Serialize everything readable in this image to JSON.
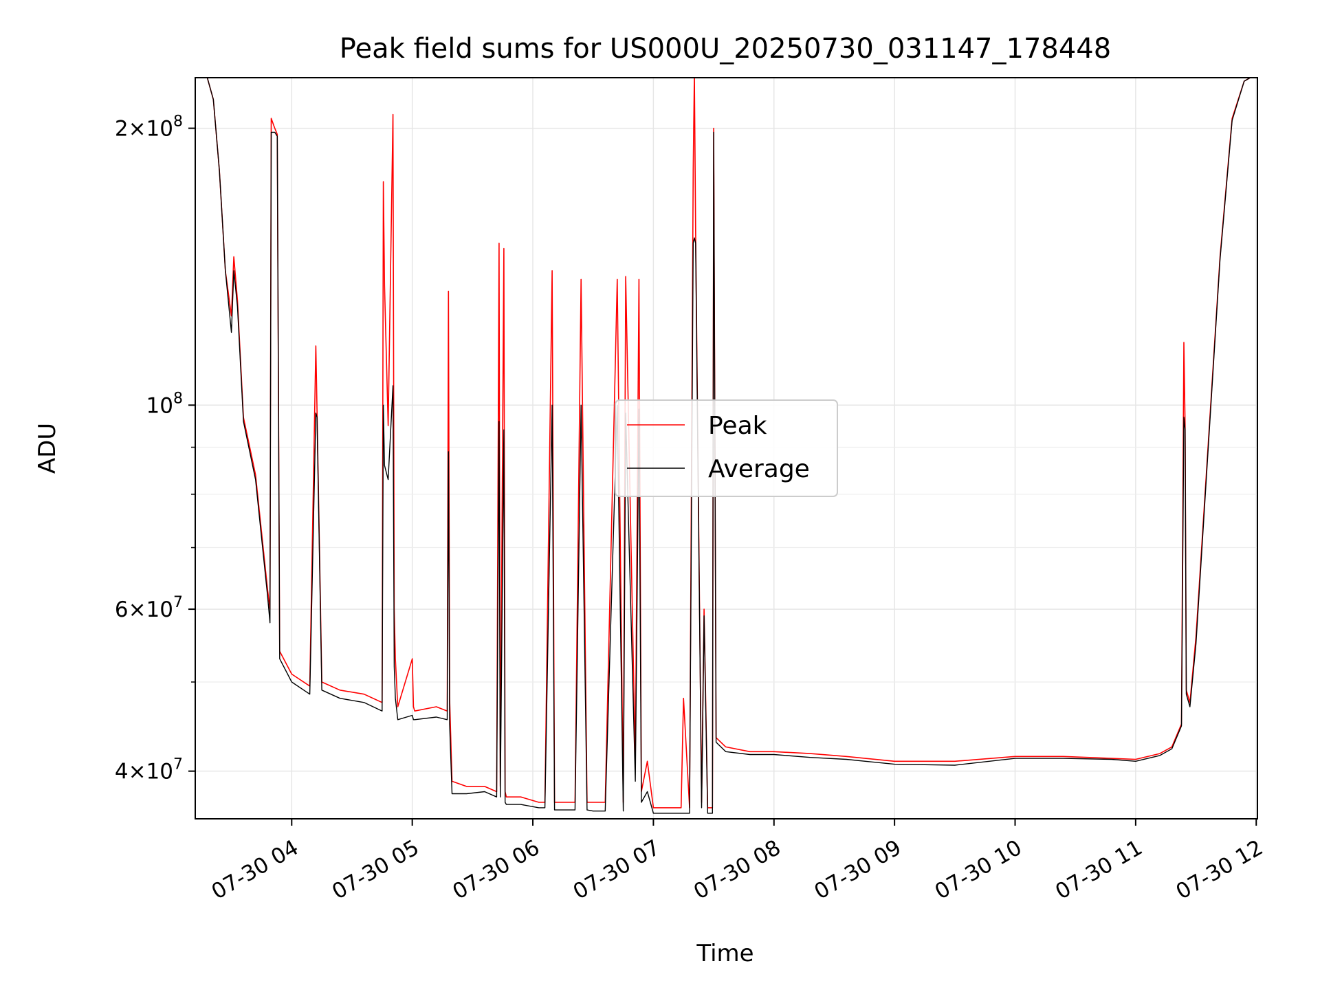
{
  "chart_data": {
    "type": "line",
    "title": "Peak field sums for US000U_20250730_031147_178448",
    "xlabel": "Time",
    "ylabel": "ADU",
    "yscale": "log",
    "grid": true,
    "legend_position": "center",
    "xlim": [
      3.2,
      12.01
    ],
    "ylim": [
      35500000,
      227000000
    ],
    "x_ticks": [
      {
        "value": 4,
        "label": "07-30 04"
      },
      {
        "value": 5,
        "label": "07-30 05"
      },
      {
        "value": 6,
        "label": "07-30 06"
      },
      {
        "value": 7,
        "label": "07-30 07"
      },
      {
        "value": 8,
        "label": "07-30 08"
      },
      {
        "value": 9,
        "label": "07-30 09"
      },
      {
        "value": 10,
        "label": "07-30 10"
      },
      {
        "value": 11,
        "label": "07-30 11"
      },
      {
        "value": 12,
        "label": "07-30 12"
      }
    ],
    "y_ticks": [
      {
        "value": 40000000,
        "base": "4",
        "exp": "7"
      },
      {
        "value": 60000000,
        "base": "6",
        "exp": "7"
      },
      {
        "value": 100000000,
        "base": "",
        "exp": "8"
      },
      {
        "value": 200000000,
        "base": "2",
        "exp": "8"
      }
    ],
    "y_minor_ticks": [
      50000000,
      70000000,
      80000000,
      90000000
    ],
    "series": [
      {
        "name": "Peak",
        "color": "#ff0000",
        "x": [
          3.2,
          3.3,
          3.35,
          3.4,
          3.45,
          3.5,
          3.52,
          3.55,
          3.6,
          3.7,
          3.8,
          3.82,
          3.83,
          3.86,
          3.88,
          3.9,
          4.0,
          4.15,
          4.2,
          4.21,
          4.25,
          4.4,
          4.6,
          4.75,
          4.76,
          4.77,
          4.8,
          4.84,
          4.85,
          4.86,
          4.88,
          5.0,
          5.01,
          5.02,
          5.2,
          5.29,
          5.3,
          5.31,
          5.33,
          5.45,
          5.6,
          5.7,
          5.72,
          5.73,
          5.76,
          5.77,
          5.78,
          5.9,
          6.05,
          6.1,
          6.16,
          6.18,
          6.25,
          6.35,
          6.4,
          6.45,
          6.5,
          6.6,
          6.7,
          6.75,
          6.77,
          6.85,
          6.88,
          6.9,
          6.95,
          7.0,
          7.1,
          7.23,
          7.25,
          7.3,
          7.33,
          7.34,
          7.35,
          7.4,
          7.42,
          7.45,
          7.49,
          7.5,
          7.52,
          7.6,
          7.8,
          8.0,
          8.3,
          8.6,
          9.0,
          9.5,
          10.0,
          10.4,
          10.8,
          11.0,
          11.2,
          11.3,
          11.38,
          11.4,
          11.41,
          11.42,
          11.45,
          11.5,
          11.6,
          11.7,
          11.8,
          11.9,
          11.95,
          12.0,
          12.01
        ],
        "values": [
          227000000,
          227000000,
          215000000,
          180000000,
          140000000,
          125000000,
          145000000,
          130000000,
          97000000,
          84000000,
          63000000,
          60000000,
          205000000,
          200000000,
          197000000,
          54000000,
          51000000,
          49500000,
          116000000,
          99000000,
          50000000,
          49000000,
          48500000,
          47500000,
          175000000,
          135000000,
          95000000,
          207000000,
          60000000,
          53000000,
          47000000,
          53000000,
          47000000,
          46500000,
          47000000,
          46500000,
          133000000,
          48000000,
          39000000,
          38500000,
          38500000,
          38000000,
          150000000,
          38500000,
          148000000,
          38000000,
          37500000,
          37500000,
          37000000,
          37000000,
          140000000,
          37000000,
          37000000,
          37000000,
          137000000,
          37000000,
          37000000,
          37000000,
          137000000,
          37000000,
          138000000,
          41000000,
          137000000,
          38000000,
          41000000,
          36500000,
          36500000,
          36500000,
          48000000,
          36500000,
          180000000,
          230000000,
          155000000,
          37000000,
          60000000,
          36500000,
          36500000,
          200000000,
          43500000,
          42500000,
          42000000,
          42000000,
          41800000,
          41500000,
          41000000,
          41000000,
          41500000,
          41500000,
          41300000,
          41200000,
          41800000,
          42500000,
          45000000,
          117000000,
          95000000,
          49000000,
          47500000,
          56000000,
          90000000,
          145000000,
          205000000,
          225000000,
          227000000,
          227000000,
          227000000
        ]
      },
      {
        "name": "Average",
        "color": "#000000",
        "x": [
          3.2,
          3.3,
          3.35,
          3.4,
          3.45,
          3.5,
          3.52,
          3.55,
          3.6,
          3.7,
          3.8,
          3.82,
          3.83,
          3.86,
          3.88,
          3.9,
          4.0,
          4.15,
          4.2,
          4.21,
          4.25,
          4.4,
          4.6,
          4.75,
          4.76,
          4.77,
          4.8,
          4.84,
          4.85,
          4.86,
          4.88,
          5.0,
          5.01,
          5.02,
          5.2,
          5.29,
          5.3,
          5.31,
          5.33,
          5.45,
          5.6,
          5.7,
          5.72,
          5.73,
          5.76,
          5.77,
          5.78,
          5.9,
          6.05,
          6.1,
          6.16,
          6.18,
          6.25,
          6.35,
          6.4,
          6.45,
          6.5,
          6.6,
          6.7,
          6.75,
          6.77,
          6.85,
          6.88,
          6.9,
          6.95,
          7.0,
          7.1,
          7.23,
          7.25,
          7.3,
          7.33,
          7.34,
          7.35,
          7.4,
          7.42,
          7.45,
          7.49,
          7.5,
          7.52,
          7.6,
          7.8,
          8.0,
          8.3,
          8.6,
          9.0,
          9.5,
          10.0,
          10.4,
          10.8,
          11.0,
          11.2,
          11.3,
          11.38,
          11.4,
          11.41,
          11.42,
          11.45,
          11.5,
          11.6,
          11.7,
          11.8,
          11.9,
          11.95,
          12.0,
          12.01
        ],
        "values": [
          227000000,
          227000000,
          215000000,
          180000000,
          140000000,
          120000000,
          140000000,
          128000000,
          96000000,
          83000000,
          62000000,
          58000000,
          198000000,
          198000000,
          196000000,
          53000000,
          50000000,
          48500000,
          98000000,
          97000000,
          49000000,
          48000000,
          47500000,
          46500000,
          100000000,
          86000000,
          83000000,
          105000000,
          52000000,
          48000000,
          45500000,
          46000000,
          45500000,
          45500000,
          45800000,
          45500000,
          89000000,
          45000000,
          37800000,
          37800000,
          38000000,
          37500000,
          96000000,
          37500000,
          94000000,
          37000000,
          36800000,
          36800000,
          36500000,
          36500000,
          100000000,
          36300000,
          36300000,
          36300000,
          100000000,
          36300000,
          36200000,
          36200000,
          100000000,
          36200000,
          98000000,
          39000000,
          99000000,
          37000000,
          38000000,
          36000000,
          36000000,
          36000000,
          36000000,
          36000000,
          150000000,
          152000000,
          150000000,
          36500000,
          59000000,
          36000000,
          36000000,
          198000000,
          43000000,
          42000000,
          41700000,
          41700000,
          41400000,
          41200000,
          40700000,
          40600000,
          41300000,
          41300000,
          41200000,
          41000000,
          41600000,
          42300000,
          44800000,
          97000000,
          94000000,
          48500000,
          47000000,
          55000000,
          89000000,
          144000000,
          204000000,
          225000000,
          227000000,
          227000000,
          227000000
        ]
      }
    ]
  }
}
